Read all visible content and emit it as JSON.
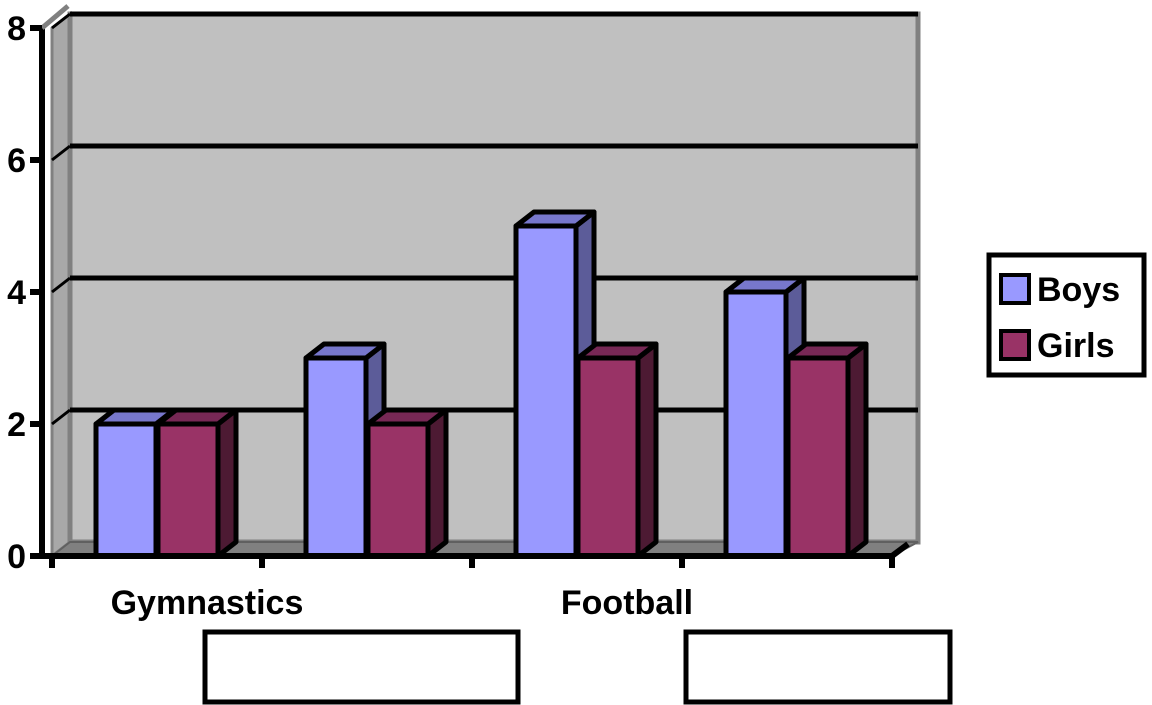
{
  "chart_data": {
    "type": "bar",
    "categories": [
      "Gymnastics",
      "",
      "Football",
      ""
    ],
    "series": [
      {
        "name": "Boys",
        "values": [
          2,
          3,
          5,
          4
        ],
        "color": "#9999ff",
        "side_color": "#5c5c99",
        "top_color": "#7777cc"
      },
      {
        "name": "Girls",
        "values": [
          2,
          2,
          3,
          3
        ],
        "color": "#993366",
        "side_color": "#4d1a33",
        "top_color": "#772855"
      }
    ],
    "ylim": [
      0,
      8
    ],
    "yticks": [
      "0",
      "2",
      "4",
      "6",
      "8"
    ],
    "grid": true,
    "legend": "right",
    "blank_label_boxes": 2,
    "wall_color": "#c0c0c0",
    "floor_color": "#808080"
  }
}
